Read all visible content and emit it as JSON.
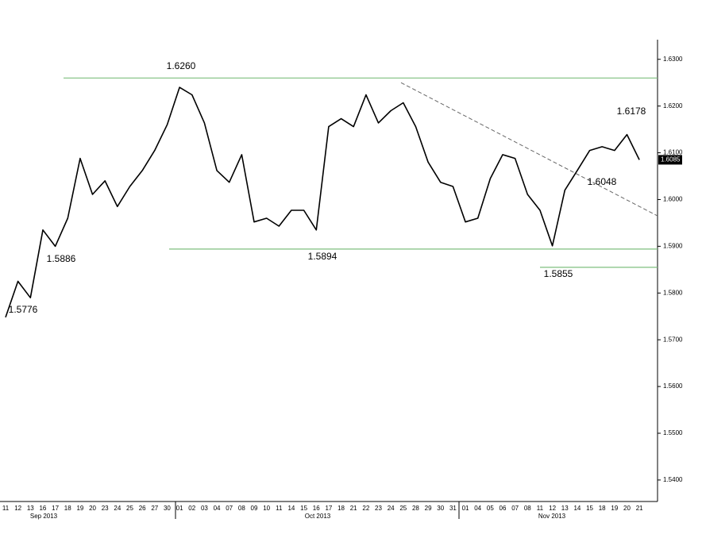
{
  "chart_data": {
    "type": "line",
    "categories": [
      "11",
      "12",
      "13",
      "16",
      "17",
      "18",
      "19",
      "20",
      "23",
      "24",
      "25",
      "26",
      "27",
      "30",
      "01",
      "02",
      "03",
      "04",
      "07",
      "08",
      "09",
      "10",
      "11",
      "14",
      "15",
      "16",
      "17",
      "18",
      "21",
      "22",
      "23",
      "24",
      "25",
      "28",
      "29",
      "30",
      "31",
      "01",
      "04",
      "05",
      "06",
      "07",
      "08",
      "11",
      "12",
      "13",
      "14",
      "15",
      "18",
      "19",
      "20",
      "21"
    ],
    "values": [
      1.5748,
      1.5825,
      1.579,
      1.5935,
      1.59,
      1.596,
      1.6088,
      1.6011,
      1.604,
      1.5985,
      1.6028,
      1.6062,
      1.6105,
      1.616,
      1.624,
      1.6224,
      1.6164,
      1.6062,
      1.6037,
      1.6096,
      1.5952,
      1.596,
      1.5943,
      1.5977,
      1.5977,
      1.5935,
      1.6156,
      1.6173,
      1.6156,
      1.6224,
      1.6164,
      1.619,
      1.6207,
      1.6156,
      1.608,
      1.6037,
      1.6028,
      1.5952,
      1.596,
      1.6045,
      1.6096,
      1.6088,
      1.6011,
      1.5977,
      1.5901,
      1.602,
      1.6062,
      1.6105,
      1.6113,
      1.6105,
      1.6139,
      1.6085
    ],
    "color": "#000000",
    "month_labels": [
      "Sep 2013",
      "Oct 2013",
      "Nov 2013"
    ],
    "ylim": [
      1.5354,
      1.6342
    ],
    "yticks": [
      {
        "value": 1.54,
        "label": "1.5400"
      },
      {
        "value": 1.55,
        "label": "1.5500"
      },
      {
        "value": 1.56,
        "label": "1.5600"
      },
      {
        "value": 1.57,
        "label": "1.5700"
      },
      {
        "value": 1.58,
        "label": "1.5800"
      },
      {
        "value": 1.59,
        "label": "1.5900"
      },
      {
        "value": 1.6,
        "label": "1.6000"
      },
      {
        "value": 1.61,
        "label": "1.6100"
      },
      {
        "value": 1.62,
        "label": "1.6200"
      },
      {
        "value": 1.63,
        "label": "1.6300"
      }
    ],
    "levels": [
      1.626,
      1.5894,
      1.5855
    ],
    "level_color": "#7fbf7f",
    "trendline": [
      1.625,
      1.5965
    ],
    "annotations": [
      {
        "value": 1.626,
        "label": "1.6260"
      },
      {
        "value": 1.5886,
        "label": "1.5886"
      },
      {
        "value": 1.5776,
        "label": "1.5776"
      },
      {
        "value": 1.5894,
        "label": "1.5894"
      },
      {
        "value": 1.5855,
        "label": "1.5855"
      },
      {
        "value": 1.6178,
        "label": "1.6178"
      },
      {
        "value": 1.6048,
        "label": "1.6048"
      }
    ],
    "last_price": {
      "value": 1.6085,
      "label": "1.6085"
    }
  }
}
